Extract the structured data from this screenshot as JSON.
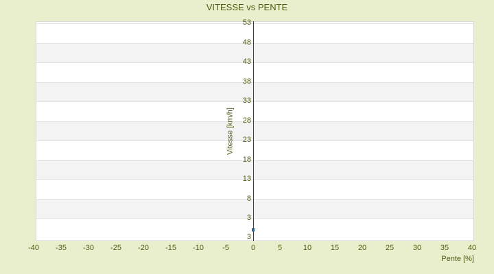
{
  "page": {
    "background_color": "#e9efcc",
    "text_color": "#4f5b13"
  },
  "chart_data": {
    "type": "scatter",
    "title": "VITESSE vs PENTE",
    "xlabel": "Pente [%]",
    "ylabel": "Vitesse [km/h]",
    "x_ticks": [
      -40,
      -35,
      -30,
      -25,
      -20,
      -15,
      -10,
      -5,
      0,
      5,
      10,
      15,
      20,
      25,
      30,
      35,
      40
    ],
    "y_ticks": [
      53,
      48,
      43,
      38,
      33,
      28,
      23,
      18,
      13,
      8,
      3
    ],
    "y_baseline_label": "3",
    "xlim": [
      -40,
      40
    ],
    "y_tick_step": 5,
    "grid": "horizontal-bands-and-gridlines",
    "legend": "none",
    "band_colors": [
      "#ffffff",
      "#f3f3f3"
    ],
    "gridline_color": "#e3e3e3",
    "axis_line_color": "#3e450d",
    "marker_color": "#37688c",
    "series": [
      {
        "name": "vitesse-vs-pente-points",
        "points": [
          {
            "x": 0,
            "y": 0
          }
        ]
      }
    ]
  }
}
